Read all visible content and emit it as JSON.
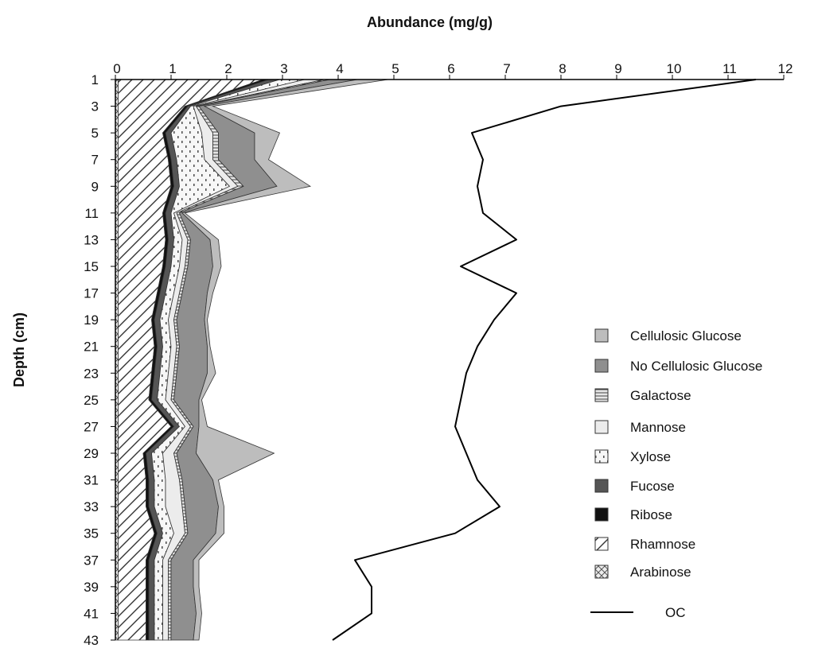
{
  "chart_data": {
    "type": "area",
    "title": "Abundance (mg/g)",
    "xlabel": "Abundance (mg/g)",
    "ylabel": "Depth (cm)",
    "xlim": [
      0,
      12
    ],
    "ylim": [
      1,
      43
    ],
    "x_ticks": [
      "0",
      "1",
      "2",
      "3",
      "4",
      "5",
      "6",
      "7",
      "8",
      "9",
      "10",
      "11",
      "12"
    ],
    "y_ticks": [
      "1",
      "3",
      "5",
      "7",
      "9",
      "11",
      "13",
      "15",
      "17",
      "19",
      "21",
      "23",
      "25",
      "27",
      "29",
      "31",
      "33",
      "35",
      "37",
      "39",
      "41",
      "43"
    ],
    "depths": [
      1,
      3,
      5,
      7,
      9,
      11,
      13,
      15,
      17,
      19,
      21,
      23,
      25,
      27,
      29,
      31,
      33,
      35,
      37,
      39,
      41,
      43
    ],
    "stacked_series": [
      {
        "name": "Arabinose",
        "color": "#f0f0f0",
        "values": [
          0.05,
          0.05,
          0.05,
          0.05,
          0.05,
          0.05,
          0.05,
          0.05,
          0.05,
          0.05,
          0.05,
          0.05,
          0.05,
          0.05,
          0.05,
          0.05,
          0.05,
          0.05,
          0.05,
          0.05,
          0.05,
          0.05
        ]
      },
      {
        "name": "Rhamnose",
        "color": "#ffffff",
        "values": [
          2.6,
          1.2,
          0.8,
          0.9,
          0.95,
          0.8,
          0.85,
          0.8,
          0.7,
          0.6,
          0.65,
          0.6,
          0.55,
          0.95,
          0.45,
          0.5,
          0.5,
          0.65,
          0.5,
          0.5,
          0.5,
          0.5
        ]
      },
      {
        "name": "Ribose",
        "color": "#111111",
        "values": [
          0.1,
          0.05,
          0.05,
          0.05,
          0.05,
          0.05,
          0.05,
          0.05,
          0.05,
          0.05,
          0.05,
          0.05,
          0.05,
          0.05,
          0.05,
          0.05,
          0.05,
          0.05,
          0.05,
          0.05,
          0.05,
          0.05
        ]
      },
      {
        "name": "Fucose",
        "color": "#555555",
        "values": [
          0.2,
          0.05,
          0.1,
          0.1,
          0.1,
          0.1,
          0.1,
          0.1,
          0.1,
          0.1,
          0.1,
          0.1,
          0.1,
          0.1,
          0.1,
          0.1,
          0.1,
          0.1,
          0.1,
          0.1,
          0.1,
          0.1
        ]
      },
      {
        "name": "Xylose",
        "color": "#f4f4f4",
        "values": [
          0.45,
          0.05,
          0.55,
          0.5,
          0.9,
          0.05,
          0.15,
          0.15,
          0.15,
          0.15,
          0.15,
          0.15,
          0.15,
          0.1,
          0.2,
          0.2,
          0.2,
          0.2,
          0.15,
          0.15,
          0.15,
          0.15
        ]
      },
      {
        "name": "Mannose",
        "color": "#e8e8e8",
        "values": [
          0.35,
          0.05,
          0.2,
          0.15,
          0.15,
          0.05,
          0.1,
          0.1,
          0.1,
          0.1,
          0.1,
          0.1,
          0.1,
          0.1,
          0.2,
          0.25,
          0.3,
          0.2,
          0.1,
          0.1,
          0.1,
          0.1
        ]
      },
      {
        "name": "Galactose",
        "color": "#dcdcdc",
        "values": [
          0.1,
          0.05,
          0.1,
          0.1,
          0.1,
          0.05,
          0.05,
          0.05,
          0.05,
          0.05,
          0.05,
          0.05,
          0.05,
          0.05,
          0.05,
          0.05,
          0.05,
          0.05,
          0.05,
          0.05,
          0.05,
          0.05
        ]
      },
      {
        "name": "No Cellulosic Glucose",
        "color": "#8f8f8f",
        "values": [
          0.5,
          0.1,
          0.65,
          0.65,
          0.6,
          0.05,
          0.35,
          0.45,
          0.45,
          0.5,
          0.5,
          0.55,
          0.45,
          0.1,
          0.35,
          0.55,
          0.6,
          0.5,
          0.4,
          0.4,
          0.45,
          0.4
        ]
      },
      {
        "name": "Cellulosic Glucose",
        "color": "#bdbdbd",
        "values": [
          0.55,
          0.15,
          0.45,
          0.25,
          0.6,
          0.05,
          0.15,
          0.15,
          0.1,
          0.05,
          0.05,
          0.15,
          0.05,
          0.15,
          1.4,
          0.1,
          0.1,
          0.15,
          0.1,
          0.1,
          0.1,
          0.1
        ]
      }
    ],
    "line_series": {
      "name": "OC",
      "color": "#000000",
      "values": [
        11.5,
        8.0,
        6.4,
        6.6,
        6.5,
        6.6,
        7.2,
        6.2,
        7.2,
        6.8,
        6.5,
        6.3,
        6.2,
        6.1,
        6.3,
        6.5,
        6.9,
        6.1,
        4.3,
        4.6,
        4.6,
        3.9
      ]
    },
    "legend": {
      "position": "right",
      "items": [
        {
          "label": "Cellulosic Glucose",
          "pattern": "solid-light"
        },
        {
          "label": "No Cellulosic Glucose",
          "pattern": "solid-dark"
        },
        {
          "label": "Galactose",
          "pattern": "hstripes"
        },
        {
          "label": "Mannose",
          "pattern": "solid-pale"
        },
        {
          "label": "Xylose",
          "pattern": "dots"
        },
        {
          "label": "Fucose",
          "pattern": "solid-darker"
        },
        {
          "label": "Ribose",
          "pattern": "solid-black"
        },
        {
          "label": "Rhamnose",
          "pattern": "diagonal"
        },
        {
          "label": "Arabinose",
          "pattern": "cross"
        }
      ],
      "line_label": "OC"
    },
    "grid": false
  }
}
